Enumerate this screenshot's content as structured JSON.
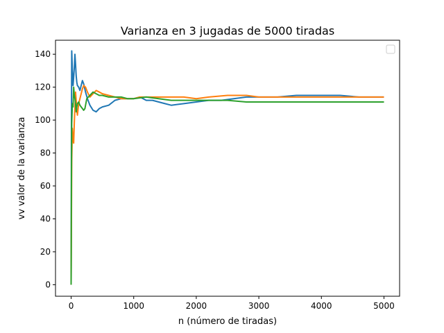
{
  "chart_data": {
    "type": "line",
    "title": "Varianza en 3 jugadas de 5000 tiradas",
    "xlabel": "n (número de tiradas)",
    "ylabel": "vv valor de la varianza",
    "xlim": [
      -250,
      5250
    ],
    "ylim": [
      -7,
      148.5
    ],
    "xticks": [
      0,
      1000,
      2000,
      3000,
      4000,
      5000
    ],
    "yticks": [
      0,
      20,
      40,
      60,
      80,
      100,
      120,
      140
    ],
    "grid": false,
    "legend": {
      "placement": "top-right",
      "entries": []
    },
    "series": [
      {
        "color": "#1f77b4",
        "x": [
          0,
          5,
          10,
          20,
          30,
          40,
          50,
          60,
          70,
          80,
          90,
          100,
          120,
          140,
          160,
          180,
          200,
          230,
          260,
          300,
          350,
          400,
          450,
          500,
          600,
          700,
          800,
          900,
          1000,
          1100,
          1200,
          1300,
          1400,
          1500,
          1600,
          1800,
          2000,
          2200,
          2400,
          2600,
          2800,
          3000,
          3300,
          3600,
          4000,
          4300,
          4600,
          5000
        ],
        "values": [
          0,
          100,
          142,
          130,
          121,
          126,
          132,
          140,
          134,
          127,
          123,
          121,
          120,
          118,
          121,
          124,
          122,
          117,
          113,
          109,
          106,
          105,
          107,
          108,
          109,
          112,
          113,
          113,
          113,
          114,
          112,
          112,
          111,
          110,
          109,
          110,
          111,
          112,
          112,
          113,
          114,
          114,
          114,
          115,
          115,
          115,
          114,
          114
        ]
      },
      {
        "color": "#ff7f0e",
        "x": [
          0,
          10,
          20,
          30,
          40,
          50,
          60,
          70,
          80,
          90,
          100,
          120,
          140,
          160,
          180,
          200,
          230,
          260,
          300,
          350,
          400,
          450,
          500,
          600,
          700,
          800,
          900,
          1000,
          1100,
          1200,
          1400,
          1600,
          1800,
          2000,
          2200,
          2500,
          2800,
          3000,
          3500,
          4000,
          4500,
          5000
        ],
        "values": [
          0,
          75,
          95,
          88,
          86,
          98,
          108,
          117,
          112,
          106,
          103,
          110,
          113,
          116,
          119,
          121,
          120,
          117,
          114,
          116,
          118,
          117,
          116,
          115,
          114,
          113,
          113,
          113,
          114,
          114,
          114,
          114,
          114,
          113,
          114,
          115,
          115,
          114,
          114,
          114,
          114,
          114
        ]
      },
      {
        "color": "#2ca02c",
        "x": [
          0,
          5,
          10,
          20,
          30,
          40,
          50,
          60,
          70,
          80,
          90,
          100,
          120,
          140,
          160,
          180,
          200,
          220,
          250,
          300,
          350,
          400,
          450,
          500,
          600,
          700,
          800,
          900,
          1000,
          1200,
          1400,
          1600,
          1800,
          2000,
          2200,
          2500,
          2800,
          3000,
          3500,
          4000,
          4500,
          5000
        ],
        "values": [
          0,
          65,
          98,
          110,
          108,
          120,
          115,
          113,
          110,
          105,
          108,
          110,
          111,
          109,
          108,
          107,
          106,
          107,
          113,
          115,
          117,
          116,
          115,
          115,
          114,
          114,
          114,
          113,
          113,
          114,
          113,
          112,
          112,
          112,
          112,
          112,
          111,
          111,
          111,
          111,
          111,
          111
        ]
      }
    ]
  }
}
